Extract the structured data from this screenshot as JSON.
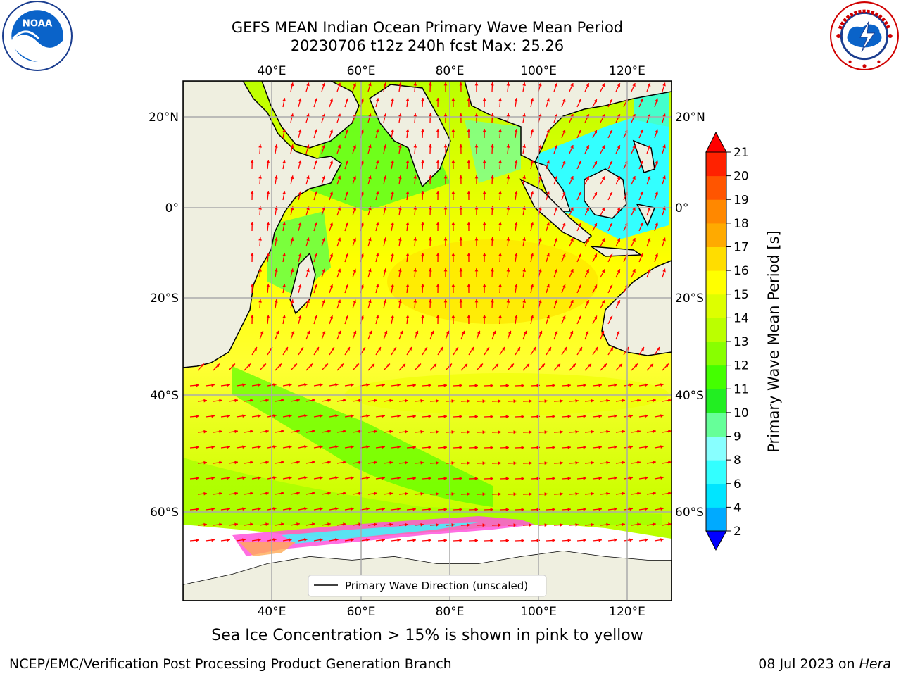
{
  "header": {
    "title": "GEFS MEAN Indian Ocean Primary Wave Mean Period",
    "subtitle": "20230706 t12z 240h fcst   Max: 25.26"
  },
  "logos": {
    "left": "noaa-logo",
    "left_text": "NOAA",
    "right": "nws-logo"
  },
  "map": {
    "lon_labels": [
      "40°E",
      "60°E",
      "80°E",
      "100°E",
      "120°E"
    ],
    "lat_labels": [
      "20°N",
      "0°",
      "20°S",
      "40°S",
      "60°S"
    ],
    "land_color": "#efefe0",
    "arrow_color": "#ff0000",
    "grid": true
  },
  "legend": {
    "label": "Primary Wave Direction (unscaled)"
  },
  "colorbar": {
    "title": "Primary Wave Mean Period [s]",
    "tick_labels": [
      "2",
      "4",
      "6",
      "8",
      "9",
      "10",
      "11",
      "12",
      "13",
      "14",
      "15",
      "16",
      "17",
      "18",
      "19",
      "20",
      "21"
    ],
    "colors": [
      "#0055ff",
      "#00aaff",
      "#00e5ff",
      "#33ffff",
      "#88ffff",
      "#66ff99",
      "#22ee22",
      "#44ff00",
      "#88ff00",
      "#bbff00",
      "#ddff00",
      "#ffff00",
      "#ffdd00",
      "#ffaa00",
      "#ff8800",
      "#ff5500",
      "#ff2200"
    ],
    "under_color": "#0000ff",
    "over_color": "#ff0000"
  },
  "note": "Sea Ice Concentration > 15% is shown in pink to yellow",
  "footer": {
    "left": "NCEP/EMC/Verification Post Processing Product Generation Branch",
    "date": "08 Jul 2023 on ",
    "machine": "Hera"
  }
}
